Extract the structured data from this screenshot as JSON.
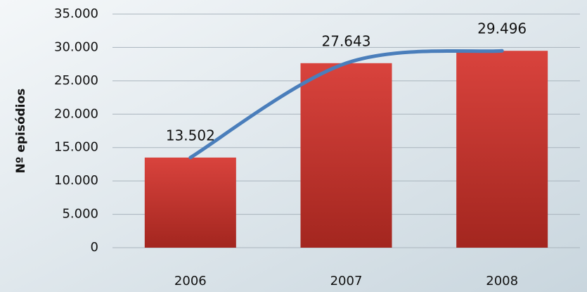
{
  "chart_data": {
    "type": "bar",
    "y_label": "Nº episódios",
    "categories": [
      "2006",
      "2007",
      "2008"
    ],
    "values": [
      13502,
      27643,
      29496
    ],
    "value_labels": [
      "13.502",
      "27.643",
      "29.496"
    ],
    "color": "#c9302c",
    "trend_color": "#4a7ebb",
    "ylim": [
      0,
      35000
    ],
    "yticks": [
      0,
      {
        "value": 5000,
        "label": "5.000"
      },
      {
        "value": 10000,
        "label": "10.000"
      },
      {
        "value": 15000,
        "label": "15.000"
      },
      {
        "value": 20000,
        "label": "20.000"
      },
      {
        "value": 25000,
        "label": "25.000"
      },
      {
        "value": 30000,
        "label": "30.000"
      },
      {
        "value": 35000,
        "label": "35.000"
      }
    ],
    "grid": true
  }
}
